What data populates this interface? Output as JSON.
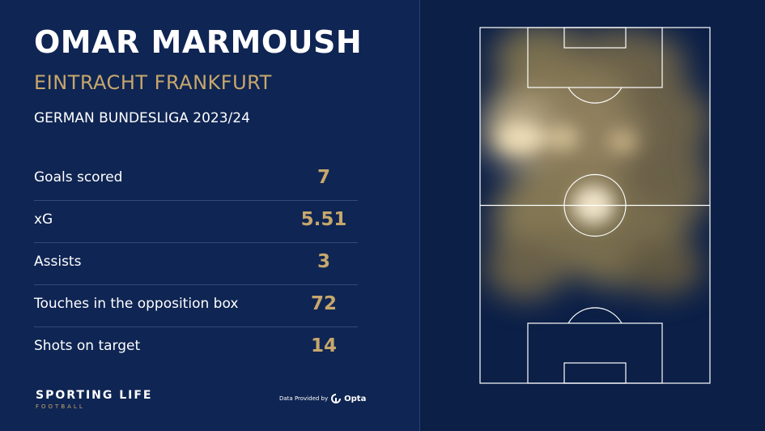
{
  "player": {
    "name": "OMAR MARMOUSH",
    "club": "EINTRACHT FRANKFURT",
    "competition": "GERMAN BUNDESLIGA 2023/24"
  },
  "stats": [
    {
      "label": "Goals scored",
      "value": "7"
    },
    {
      "label": "xG",
      "value": "5.51"
    },
    {
      "label": "Assists",
      "value": "3"
    },
    {
      "label": "Touches in the opposition box",
      "value": "72"
    },
    {
      "label": "Shots on target",
      "value": "14"
    }
  ],
  "branding": {
    "title": "SPORTING LIFE",
    "subtitle": "FOOTBALL"
  },
  "provider": {
    "text": "Data Provided by",
    "name": "Opta"
  },
  "colors": {
    "background": "#0f2553",
    "accent": "#c7a76c",
    "heat": "#f2d9a8"
  }
}
